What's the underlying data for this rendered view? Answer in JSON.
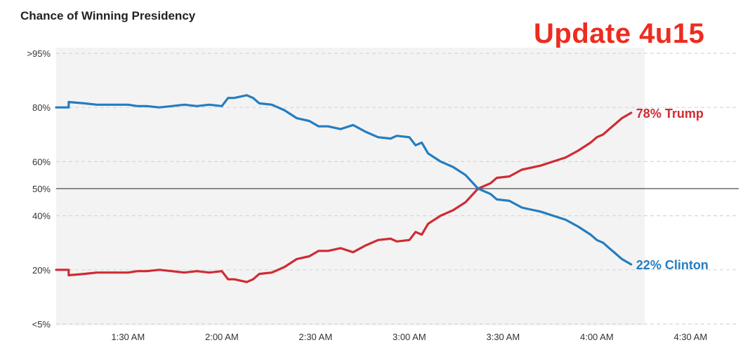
{
  "header": {
    "title": "Chance of Winning Presidency",
    "annotation": "Update 4u15"
  },
  "colors": {
    "trump": "#cf2b33",
    "clinton": "#237dc1",
    "annotation": "#ee2b1f",
    "plot_bg": "#f3f3f3"
  },
  "chart_data": {
    "type": "line",
    "title": "Chance of Winning Presidency",
    "xlabel": "",
    "ylabel": "",
    "xlim": [
      "1:07 AM",
      "4:47 AM"
    ],
    "ylim": [
      0,
      100
    ],
    "yscale": "custom: <5% at bottom, >95% at top",
    "grid": "horizontal dashed",
    "x_ticks": [
      "1:30 AM",
      "2:00 AM",
      "2:30 AM",
      "3:00 AM",
      "3:30 AM",
      "4:00 AM",
      "4:30 AM"
    ],
    "y_ticks": [
      {
        "label": ">95%",
        "value": 100
      },
      {
        "label": "80%",
        "value": 80
      },
      {
        "label": "60%",
        "value": 60
      },
      {
        "label": "50%",
        "value": 50
      },
      {
        "label": "40%",
        "value": 40
      },
      {
        "label": "20%",
        "value": 20
      },
      {
        "label": "<5%",
        "value": 0
      }
    ],
    "x": [
      "1:07",
      "1:11",
      "1:11",
      "1:16",
      "1:20",
      "1:24",
      "1:26",
      "1:30",
      "1:33",
      "1:36",
      "1:40",
      "1:44",
      "1:48",
      "1:52",
      "1:56",
      "2:00",
      "2:02",
      "2:04",
      "2:08",
      "2:10",
      "2:12",
      "2:16",
      "2:20",
      "2:24",
      "2:28",
      "2:31",
      "2:34",
      "2:38",
      "2:42",
      "2:46",
      "2:50",
      "2:54",
      "2:56",
      "3:00",
      "3:02",
      "3:04",
      "3:06",
      "3:10",
      "3:14",
      "3:18",
      "3:22",
      "3:26",
      "3:28",
      "3:32",
      "3:36",
      "3:38",
      "3:42",
      "3:46",
      "3:50",
      "3:54",
      "3:58",
      "4:00",
      "4:02",
      "4:04",
      "4:06",
      "4:08",
      "4:11"
    ],
    "series": [
      {
        "name": "Trump",
        "end_label": "78% Trump",
        "values": [
          20,
          20,
          18,
          18.5,
          19,
          19,
          19,
          19,
          19.5,
          19.5,
          20,
          19.5,
          19,
          19.5,
          19,
          19.5,
          16.5,
          16.5,
          15.5,
          16.5,
          18.5,
          19,
          21,
          24,
          25,
          27,
          27,
          28,
          26.5,
          29,
          31,
          31.5,
          30.5,
          31,
          34,
          33,
          37,
          40,
          42,
          45,
          50,
          52,
          54,
          54.5,
          57,
          57.5,
          58.5,
          60,
          61.5,
          64,
          67,
          69,
          70,
          72,
          74,
          76,
          78
        ]
      },
      {
        "name": "Clinton",
        "end_label": "22% Clinton",
        "values": [
          80,
          80,
          82,
          81.5,
          81,
          81,
          81,
          81,
          80.5,
          80.5,
          80,
          80.5,
          81,
          80.5,
          81,
          80.5,
          83.5,
          83.5,
          84.5,
          83.5,
          81.5,
          81,
          79,
          76,
          75,
          73,
          73,
          72,
          73.5,
          71,
          69,
          68.5,
          69.5,
          69,
          66,
          67,
          63,
          60,
          58,
          55,
          50,
          48,
          46,
          45.5,
          43,
          42.5,
          41.5,
          40,
          38.5,
          36,
          33,
          31,
          30,
          28,
          26,
          24,
          22
        ]
      }
    ]
  }
}
